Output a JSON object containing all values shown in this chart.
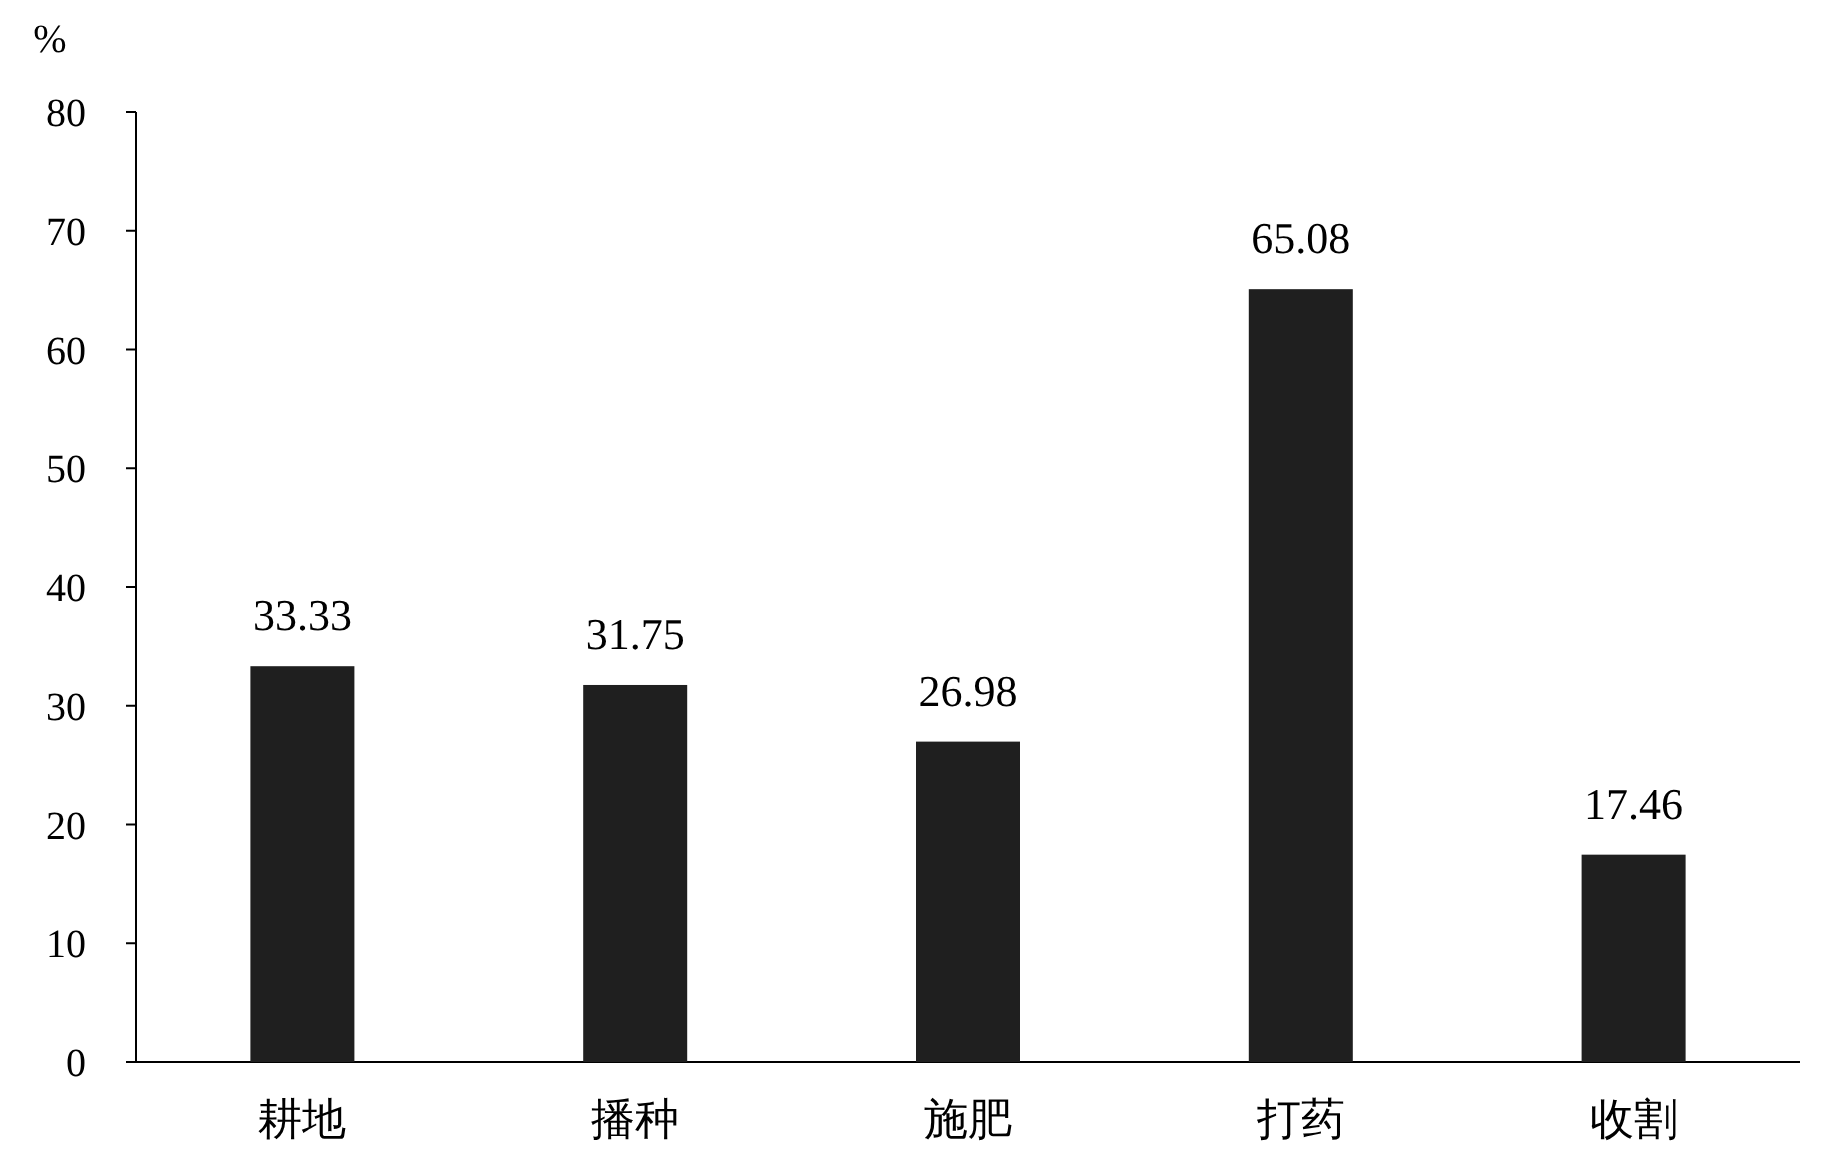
{
  "chart_data": {
    "type": "bar",
    "ylabel": "%",
    "categories": [
      "耕地",
      "播种",
      "施肥",
      "打药",
      "收割"
    ],
    "values": [
      33.33,
      31.75,
      26.98,
      65.08,
      17.46
    ],
    "color": "#1f1f1f",
    "ylim": [
      0,
      80
    ],
    "yticks": [
      0,
      10,
      20,
      30,
      40,
      50,
      60,
      70,
      80
    ],
    "data_labels": true
  }
}
